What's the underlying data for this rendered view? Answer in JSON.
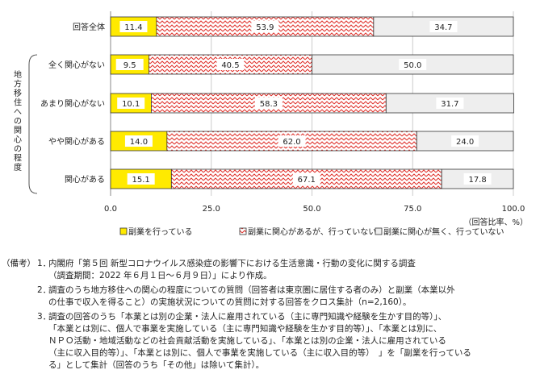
{
  "chart_data": {
    "type": "bar",
    "orientation": "horizontal",
    "stacked": true,
    "group_label": "地方移住への関心の程度",
    "categories": [
      "回答全体",
      "全く関心がない",
      "あまり関心がない",
      "やや関心がある",
      "関心がある"
    ],
    "series": [
      {
        "name": "副業を行っている",
        "values": [
          11.4,
          9.5,
          10.1,
          14.0,
          15.1
        ],
        "labels": [
          "11.4",
          "9.5",
          "10.1",
          "14.0",
          "15.1"
        ],
        "color": "#ffea00"
      },
      {
        "name": "副業に関心があるが、行っていない",
        "values": [
          53.9,
          40.5,
          58.3,
          62.0,
          67.1
        ],
        "labels": [
          "53.9",
          "40.5",
          "58.3",
          "62.0",
          "67.1"
        ],
        "color": "#e0302a"
      },
      {
        "name": "副業に関心が無く、行っていない",
        "values": [
          34.7,
          50.0,
          31.7,
          24.0,
          17.8
        ],
        "labels": [
          "34.7",
          "50.0",
          "31.7",
          "24.0",
          "17.8"
        ],
        "color": "#eeeeee"
      }
    ],
    "xlim": [
      0,
      100
    ],
    "xticks": [
      "0.0",
      "25.0",
      "50.0",
      "75.0",
      "100.0"
    ],
    "xunit": "（回答比率、%）",
    "grid": true,
    "legend_position": "bottom"
  },
  "notes": {
    "header": "（備考）",
    "items": [
      {
        "num": "1．",
        "lines": [
          "内閣府「第５回 新型コロナウイルス感染症の影響下における生活意識・行動の変化に関する調査",
          "（調査期間：2022 年６月１日～６月９日）」により作成。"
        ]
      },
      {
        "num": "2．",
        "lines": [
          "調査のうち地方移住への関心の程度についての質問（回答者は東京圏に居住する者のみ）と副業（本業以外",
          "の仕事で収入を得ること）の実施状況についての質問に対する回答をクロス集計（n=2,160）。"
        ]
      },
      {
        "num": "3．",
        "lines": [
          "調査の回答のうち「本業とは別の企業・法人に雇用されている（主に専門知識や経験を生かす目的等）」、",
          "「本業とは別に、個人で事業を実施している（主に専門知識や経験を生かす目的等）」、「本業とは別に、",
          "ＮＰＯ活動・地域活動などの社会貢献活動を実施している」、「本業とは別の企業・法人に雇用されている",
          "（主に収入目的等）」、「本業とは別に、個人で事業を実施している（主に収入目的等）　」を「副業を行っている",
          "る」として集計（回答のうち「その他」は除いて集計）。"
        ]
      }
    ]
  }
}
